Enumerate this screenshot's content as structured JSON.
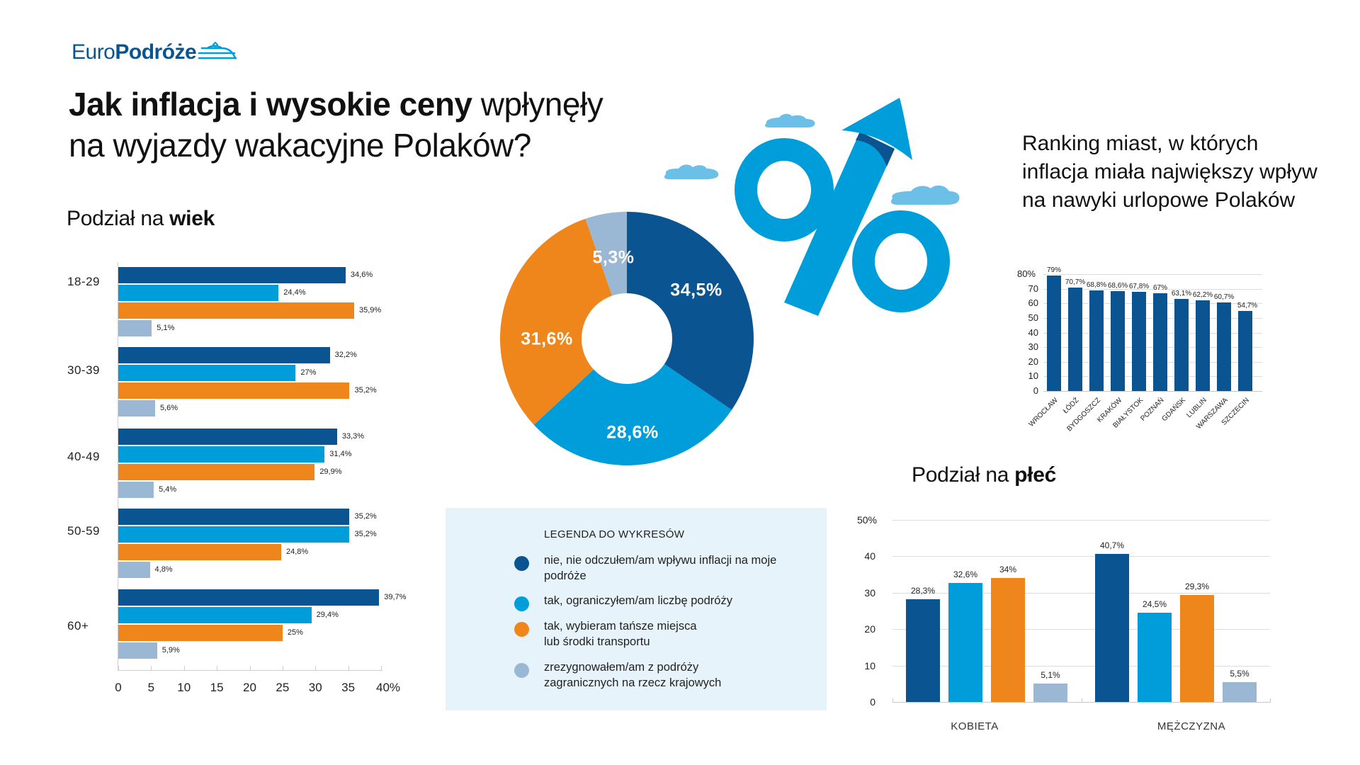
{
  "brand": {
    "logo_prefix": "Euro",
    "logo_bold": "Podróże"
  },
  "header": {
    "title_bold": "Jak inflacja i wysokie ceny",
    "title_rest_line1": " wpłynęły",
    "title_line2": "na wyjazdy wakacyjne Polaków?"
  },
  "colors": {
    "dark_blue": "#0a5591",
    "blue": "#009ddb",
    "orange": "#ef861c",
    "light_blue": "#9ab8d3",
    "legend_bg": "#e7f3fa",
    "cloud": "#6cc0e8"
  },
  "legend": {
    "title": "LEGENDA DO WYKRESÓW",
    "items": [
      {
        "label": "nie, nie odczułem/am wpływu inflacji na moje podróże",
        "color": "#0a5591"
      },
      {
        "label": "tak, ograniczyłem/am liczbę podróży",
        "color": "#009ddb"
      },
      {
        "label": "tak, wybieram tańsze miejsca lub środki transportu",
        "color": "#ef861c"
      },
      {
        "label": "zrezygnowałem/am z podróży zagranicznych na rzecz krajowych",
        "color": "#9ab8d3"
      }
    ]
  },
  "age_section": {
    "heading_prefix": "Podział na ",
    "heading_bold": "wiek"
  },
  "ranking_section": {
    "heading": "Ranking miast, w których inflacja miała największy wpływ na nawyki urlopowe Polaków"
  },
  "gender_section": {
    "heading_prefix": "Podział na ",
    "heading_bold": "płeć"
  },
  "chart_data": [
    {
      "id": "age",
      "type": "bar",
      "orientation": "horizontal",
      "title": "Podział na wiek",
      "categories": [
        "18-29",
        "30-39",
        "40-49",
        "50-59",
        "60+"
      ],
      "series": [
        {
          "name": "nie, nie odczułem/am wpływu inflacji na moje podróże",
          "color": "#0a5591",
          "values": [
            34.6,
            32.2,
            33.3,
            35.2,
            39.7
          ],
          "labels": [
            "34,6%",
            "32,2%",
            "33,3%",
            "35,2%",
            "39,7%"
          ]
        },
        {
          "name": "tak, ograniczyłem/am liczbę podróży",
          "color": "#009ddb",
          "values": [
            24.4,
            27,
            31.4,
            35.2,
            29.4
          ],
          "labels": [
            "24,4%",
            "27%",
            "31,4%",
            "35,2%",
            "29,4%"
          ]
        },
        {
          "name": "tak, wybieram tańsze miejsca lub środki transportu",
          "color": "#ef861c",
          "values": [
            35.9,
            35.2,
            29.9,
            24.8,
            25
          ],
          "labels": [
            "35,9%",
            "35,2%",
            "29,9%",
            "24,8%",
            "25%"
          ]
        },
        {
          "name": "zrezygnowałem/am z podróży zagranicznych na rzecz krajowych",
          "color": "#9ab8d3",
          "values": [
            5.1,
            5.6,
            5.4,
            4.8,
            5.9
          ],
          "labels": [
            "5,1%",
            "5,6%",
            "5,4%",
            "4,8%",
            "5,9%"
          ]
        }
      ],
      "xticks": [
        "0",
        "5",
        "10",
        "15",
        "20",
        "25",
        "30",
        "35",
        "40%"
      ],
      "xlim": [
        0,
        40
      ],
      "xlabel": "",
      "ylabel": "",
      "grid": false
    },
    {
      "id": "overall",
      "type": "pie",
      "donut": true,
      "title": "",
      "categories": [
        "nie, nie odczułem/am wpływu inflacji na moje podróże",
        "tak, ograniczyłem/am liczbę podróży",
        "tak, wybieram tańsze miejsca lub środki transportu",
        "zrezygnowałem/am z podróży zagranicznych na rzecz krajowych"
      ],
      "values": [
        34.5,
        28.6,
        31.6,
        5.3
      ],
      "labels": [
        "34,5%",
        "28,6%",
        "31,6%",
        "5,3%"
      ],
      "colors": [
        "#0a5591",
        "#009ddb",
        "#ef861c",
        "#9ab8d3"
      ]
    },
    {
      "id": "ranking",
      "type": "bar",
      "orientation": "vertical",
      "title": "Ranking miast, w których inflacja miała największy wpływ na nawyki urlopowe Polaków",
      "categories": [
        "WROCŁAW",
        "ŁÓDŹ",
        "BYDGOSZCZ",
        "KRAKÓW",
        "BIAŁYSTOK",
        "POZNAŃ",
        "GDAŃSK",
        "LUBLIN",
        "WARSZAWA",
        "SZCZECIN"
      ],
      "values": [
        79,
        70.7,
        68.8,
        68.6,
        67.8,
        67,
        63.1,
        62.2,
        60.7,
        54.7
      ],
      "labels": [
        "79%",
        "70,7%",
        "68,8%",
        "68,6%",
        "67,8%",
        "67%",
        "63,1%",
        "62,2%",
        "60,7%",
        "54,7%"
      ],
      "color": "#0a5591",
      "yticks": [
        "0",
        "10",
        "20",
        "30",
        "40",
        "50",
        "60",
        "70",
        "80%"
      ],
      "ylim": [
        0,
        80
      ],
      "grid": true
    },
    {
      "id": "gender",
      "type": "bar",
      "orientation": "vertical",
      "title": "Podział na płeć",
      "categories": [
        "KOBIETA",
        "MĘŻCZYZNA"
      ],
      "series": [
        {
          "name": "nie, nie odczułem/am wpływu inflacji na moje podróże",
          "color": "#0a5591",
          "values": [
            28.3,
            40.7
          ],
          "labels": [
            "28,3%",
            "40,7%"
          ]
        },
        {
          "name": "tak, ograniczyłem/am liczbę podróży",
          "color": "#009ddb",
          "values": [
            32.6,
            24.5
          ],
          "labels": [
            "32,6%",
            "24,5%"
          ]
        },
        {
          "name": "tak, wybieram tańsze miejsca lub środki transportu",
          "color": "#ef861c",
          "values": [
            34,
            29.3
          ],
          "labels": [
            "34%",
            "29,3%"
          ]
        },
        {
          "name": "zrezygnowałem/am z podróży zagranicznych na rzecz krajowych",
          "color": "#9ab8d3",
          "values": [
            5.1,
            5.5
          ],
          "labels": [
            "5,1%",
            "5,5%"
          ]
        }
      ],
      "yticks": [
        "0",
        "10",
        "20",
        "30",
        "40",
        "50%"
      ],
      "ylim": [
        0,
        50
      ],
      "grid": true
    }
  ]
}
